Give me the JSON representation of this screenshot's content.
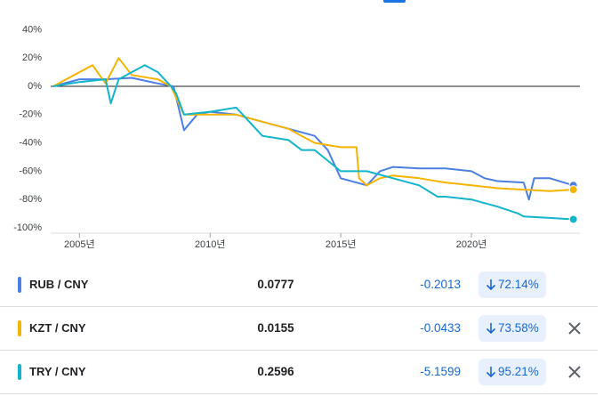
{
  "chart_data": {
    "type": "line",
    "xlim": [
      2003.9,
      2024.15
    ],
    "xticks": [
      {
        "value": 2005,
        "label": "2005년"
      },
      {
        "value": 2010,
        "label": "2010년"
      },
      {
        "value": 2015,
        "label": "2015년"
      },
      {
        "value": 2020,
        "label": "2020년"
      }
    ],
    "ylim": [
      -100,
      40
    ],
    "yticks": [
      {
        "value": 40,
        "label": "40%"
      },
      {
        "value": 20,
        "label": "20%"
      },
      {
        "value": 0,
        "label": "0%"
      },
      {
        "value": -20,
        "label": "-20%"
      },
      {
        "value": -40,
        "label": "-40%"
      },
      {
        "value": -60,
        "label": "-60%"
      },
      {
        "value": -80,
        "label": "-80%"
      },
      {
        "value": -100,
        "label": "-100%"
      }
    ],
    "series": [
      {
        "name": "RUB / CNY",
        "color": "#4b7fe3",
        "x": [
          2004,
          2005,
          2006,
          2007,
          2008,
          2008.6,
          2009,
          2009.5,
          2010,
          2011,
          2012,
          2013,
          2014,
          2014.5,
          2015,
          2016,
          2016.5,
          2017,
          2018,
          2019,
          2020,
          2020.5,
          2021,
          2022,
          2022.2,
          2022.4,
          2023,
          2023.9
        ],
        "values": [
          0,
          5,
          5,
          6,
          2,
          0,
          -31,
          -20,
          -18,
          -20,
          -25,
          -30,
          -35,
          -45,
          -65,
          -70,
          -60,
          -57,
          -58,
          -58,
          -60,
          -65,
          -67,
          -68,
          -80,
          -65,
          -65,
          -70
        ]
      },
      {
        "name": "KZT / CNY",
        "color": "#f4b400",
        "x": [
          2004,
          2005,
          2005.5,
          2006,
          2006.5,
          2007,
          2008,
          2008.5,
          2009,
          2010,
          2011,
          2012,
          2013,
          2013.5,
          2014,
          2015,
          2015.6,
          2015.7,
          2016,
          2016.5,
          2017,
          2018,
          2019,
          2020,
          2021,
          2022,
          2023,
          2023.9
        ],
        "values": [
          0,
          10,
          15,
          2,
          20,
          8,
          5,
          0,
          -20,
          -20,
          -20,
          -25,
          -30,
          -35,
          -40,
          -43,
          -43,
          -65,
          -70,
          -65,
          -63,
          -65,
          -68,
          -70,
          -72,
          -73,
          -74,
          -73
        ]
      },
      {
        "name": "TRY / CNY",
        "color": "#12b5cb",
        "x": [
          2004,
          2005,
          2006,
          2006.2,
          2006.5,
          2007,
          2007.5,
          2008,
          2008.5,
          2008.7,
          2009,
          2010,
          2011,
          2011.5,
          2012,
          2013,
          2013.5,
          2014,
          2015,
          2016,
          2017,
          2018,
          2018.7,
          2019,
          2020,
          2021,
          2021.8,
          2022,
          2023,
          2023.9
        ],
        "values": [
          0,
          3,
          5,
          -12,
          5,
          10,
          15,
          10,
          0,
          -5,
          -20,
          -18,
          -15,
          -25,
          -35,
          -38,
          -45,
          -45,
          -60,
          -60,
          -65,
          -70,
          -78,
          -78,
          -80,
          -85,
          -90,
          -92,
          -93,
          -94
        ]
      }
    ]
  },
  "table": {
    "rows": [
      {
        "price": "0.0777",
        "change": "-0.2013",
        "change_percent": "72.14%"
      },
      {
        "price": "0.0155",
        "change": "-0.0433",
        "change_percent": "73.58%"
      },
      {
        "price": "0.2596",
        "change": "-5.1599",
        "change_percent": "95.21%"
      }
    ]
  }
}
